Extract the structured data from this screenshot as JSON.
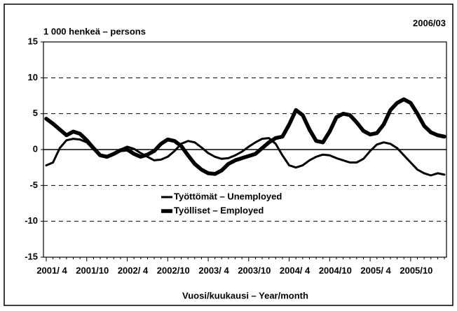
{
  "chart_data": {
    "type": "line",
    "annotation": "1 000 henkeä – persons",
    "date": "2006/03",
    "x_label": "Vuosi/kuukausi – Year/month",
    "categories": [
      "2001/ 4",
      null,
      null,
      null,
      null,
      null,
      "2001/10",
      null,
      null,
      null,
      null,
      null,
      "2002/ 4",
      null,
      null,
      null,
      null,
      null,
      "2002/10",
      null,
      null,
      null,
      null,
      null,
      "2003/ 4",
      null,
      null,
      null,
      null,
      null,
      "2003/10",
      null,
      null,
      null,
      null,
      null,
      "2004/ 4",
      null,
      null,
      null,
      null,
      null,
      "2004/10",
      null,
      null,
      null,
      null,
      null,
      "2005/ 4",
      null,
      null,
      null,
      null,
      null,
      "2005/10",
      null,
      null,
      null,
      null,
      null
    ],
    "series": [
      {
        "name": "Työttömät – Unemployed",
        "color": "#000000",
        "width": 3,
        "values": [
          -2.2,
          -1.8,
          0.2,
          1.3,
          1.5,
          1.4,
          1.0,
          0.0,
          -0.7,
          -1.0,
          -0.6,
          0.0,
          0.4,
          0.1,
          -0.5,
          -1.0,
          -1.5,
          -1.4,
          -1.0,
          -0.2,
          0.8,
          1.2,
          1.0,
          0.3,
          -0.5,
          -1.0,
          -1.3,
          -1.2,
          -0.8,
          -0.3,
          0.4,
          1.0,
          1.5,
          1.6,
          0.8,
          -0.8,
          -2.2,
          -2.5,
          -2.2,
          -1.5,
          -1.0,
          -0.7,
          -0.8,
          -1.2,
          -1.5,
          -1.8,
          -1.8,
          -1.3,
          -0.2,
          0.7,
          1.0,
          0.8,
          0.2,
          -0.8,
          -1.8,
          -2.8,
          -3.3,
          -3.6,
          -3.3,
          -3.5
        ]
      },
      {
        "name": "Työlliset – Employed",
        "color": "#000000",
        "width": 5.5,
        "values": [
          4.3,
          3.6,
          2.8,
          2.0,
          2.5,
          2.2,
          1.3,
          0.2,
          -0.8,
          -1.0,
          -0.6,
          -0.1,
          0.0,
          -0.6,
          -1.0,
          -0.7,
          -0.2,
          0.8,
          1.4,
          1.2,
          0.5,
          -0.8,
          -2.0,
          -2.8,
          -3.3,
          -3.4,
          -2.9,
          -2.0,
          -1.5,
          -1.2,
          -0.9,
          -0.6,
          0.2,
          1.0,
          1.6,
          1.8,
          3.5,
          5.5,
          4.8,
          2.8,
          1.2,
          1.0,
          2.5,
          4.5,
          5.0,
          4.8,
          3.8,
          2.6,
          2.1,
          2.3,
          3.5,
          5.5,
          6.5,
          7.0,
          6.5,
          5.0,
          3.3,
          2.4,
          2.0,
          1.8
        ]
      }
    ],
    "ylim": [
      -15,
      15
    ],
    "yticks": [
      -15,
      -10,
      -5,
      0,
      5,
      10,
      15
    ],
    "grid": true
  }
}
